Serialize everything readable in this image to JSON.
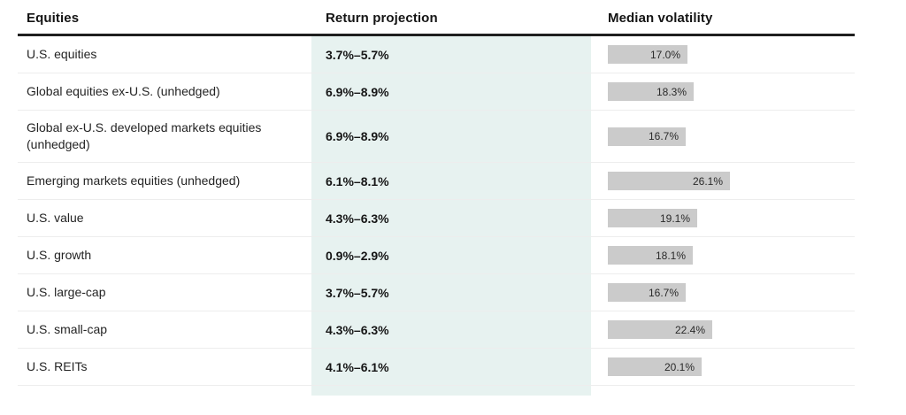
{
  "colors": {
    "highlight_band": "#e7f2f0",
    "bar_fill": "#cbcbcb",
    "header_rule": "#1f1f1f",
    "row_divider": "#ededed",
    "text_primary": "#1f1f1f"
  },
  "chart_data": {
    "type": "table",
    "columns": [
      "Equities",
      "Return projection",
      "Median volatility"
    ],
    "layout_hints": {
      "highlighted_column": "Return projection",
      "bar_column": "Median volatility",
      "bars_proportional_to": "median_volatility_pct",
      "grid": "horizontal row dividers only"
    },
    "rows": [
      {
        "equity": "U.S. equities",
        "return_projection": "3.7%–5.7%",
        "median_volatility_pct": 17.0,
        "median_volatility_label": "17.0%"
      },
      {
        "equity": "Global equities ex-U.S. (unhedged)",
        "return_projection": "6.9%–8.9%",
        "median_volatility_pct": 18.3,
        "median_volatility_label": "18.3%"
      },
      {
        "equity": "Global ex-U.S. developed markets equities (unhedged)",
        "return_projection": "6.9%–8.9%",
        "median_volatility_pct": 16.7,
        "median_volatility_label": "16.7%"
      },
      {
        "equity": "Emerging markets equities (unhedged)",
        "return_projection": "6.1%–8.1%",
        "median_volatility_pct": 26.1,
        "median_volatility_label": "26.1%"
      },
      {
        "equity": "U.S. value",
        "return_projection": "4.3%–6.3%",
        "median_volatility_pct": 19.1,
        "median_volatility_label": "19.1%"
      },
      {
        "equity": "U.S. growth",
        "return_projection": "0.9%–2.9%",
        "median_volatility_pct": 18.1,
        "median_volatility_label": "18.1%"
      },
      {
        "equity": "U.S. large-cap",
        "return_projection": "3.7%–5.7%",
        "median_volatility_pct": 16.7,
        "median_volatility_label": "16.7%"
      },
      {
        "equity": "U.S. small-cap",
        "return_projection": "4.3%–6.3%",
        "median_volatility_pct": 22.4,
        "median_volatility_label": "22.4%"
      },
      {
        "equity": "U.S. REITs",
        "return_projection": "4.1%–6.1%",
        "median_volatility_pct": 20.1,
        "median_volatility_label": "20.1%"
      }
    ]
  }
}
